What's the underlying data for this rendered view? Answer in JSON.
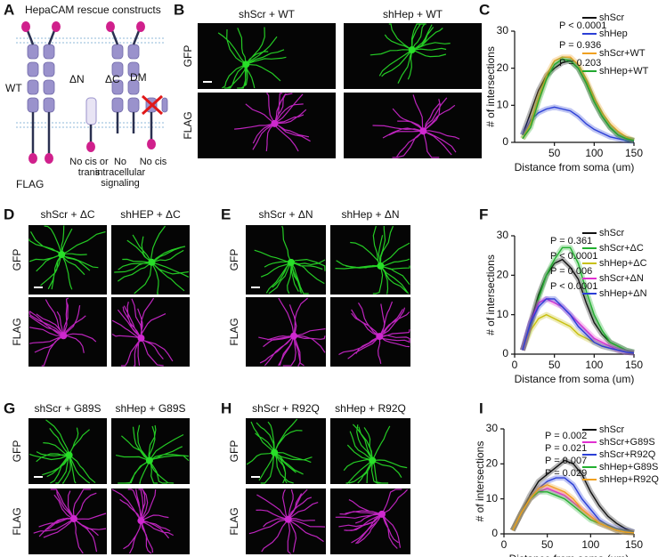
{
  "panel_letters": [
    "A",
    "B",
    "C",
    "D",
    "E",
    "F",
    "G",
    "H",
    "I"
  ],
  "panel_a": {
    "title": "HepaCAM rescue constructs",
    "tag": "FLAG",
    "constructs": [
      {
        "name": "WT"
      },
      {
        "name": "ΔN",
        "note": [
          "No cis or",
          "trans"
        ]
      },
      {
        "name": "ΔC",
        "note": [
          "No",
          "intracellular",
          "signaling"
        ]
      },
      {
        "name": "DM",
        "note": [
          "No cis"
        ]
      }
    ]
  },
  "image_panels": [
    {
      "columns": [
        "shScr + WT",
        "shHep + WT"
      ],
      "rows": [
        "GFP",
        "FLAG"
      ]
    },
    {
      "columns": [
        "shScr + ΔC",
        "shHEP + ΔC"
      ],
      "rows": [
        "GFP",
        "FLAG"
      ]
    },
    {
      "columns": [
        "shScr + ΔN",
        "shHep + ΔN"
      ],
      "rows": [
        "GFP",
        "FLAG"
      ]
    },
    {
      "columns": [
        "shScr + G89S",
        "shHep + G89S"
      ],
      "rows": [
        "GFP",
        "FLAG"
      ]
    },
    {
      "columns": [
        "shScr + R92Q",
        "shHep + R92Q"
      ],
      "rows": [
        "GFP",
        "FLAG"
      ]
    }
  ],
  "chart_data": [
    {
      "type": "line",
      "x_label": "Distance from soma (um)",
      "y_label": "# of intersections",
      "x": [
        10,
        20,
        30,
        40,
        50,
        60,
        70,
        80,
        90,
        100,
        110,
        120,
        130,
        140,
        150
      ],
      "xlim": [
        0,
        150
      ],
      "xticks": [
        50,
        100,
        150
      ],
      "ylim": [
        0,
        30
      ],
      "yticks": [
        0,
        10,
        20,
        30
      ],
      "annotations": [
        "P < 0.0001",
        "P = 0.936",
        "P = 0.203"
      ],
      "series": [
        {
          "name": "shScr",
          "color": "#111111",
          "values": [
            2,
            8,
            14,
            18,
            20,
            21.5,
            22,
            20,
            16,
            11,
            7,
            4,
            2,
            1,
            0.5
          ]
        },
        {
          "name": "shHep",
          "color": "#2b3fd6",
          "values": [
            2,
            6,
            8,
            9,
            9.5,
            9,
            8.5,
            7,
            5,
            3.5,
            2.5,
            1.5,
            1,
            0.5,
            0.3
          ]
        },
        {
          "name": "shScr+WT",
          "color": "#f0a020",
          "values": [
            1,
            5,
            12,
            18,
            22,
            23,
            23,
            21,
            17,
            12,
            8,
            5,
            3,
            1.5,
            0.5
          ]
        },
        {
          "name": "shHep+WT",
          "color": "#22a830",
          "values": [
            1,
            4,
            11,
            17,
            21,
            22.5,
            22,
            20,
            16,
            11,
            7,
            4,
            2,
            1,
            0.5
          ]
        }
      ]
    },
    {
      "type": "line",
      "x_label": "Distance from soma (um)",
      "y_label": "# of intersections",
      "x": [
        10,
        20,
        30,
        40,
        50,
        60,
        70,
        80,
        90,
        100,
        110,
        120,
        130,
        140,
        150
      ],
      "xlim": [
        0,
        150
      ],
      "xticks": [
        0,
        50,
        100,
        150
      ],
      "ylim": [
        0,
        30
      ],
      "yticks": [
        0,
        10,
        20,
        30
      ],
      "annotations": [
        "P = 0.361",
        "P < 0.0001",
        "P = 0.006",
        "P < 0.0001"
      ],
      "series": [
        {
          "name": "shScr",
          "color": "#111111",
          "values": [
            1,
            8,
            15,
            20,
            23,
            24,
            22,
            19,
            13,
            8,
            5,
            3,
            2,
            1,
            0.5
          ]
        },
        {
          "name": "shScr+ΔC",
          "color": "#22b030",
          "values": [
            1,
            7,
            14,
            20,
            24,
            27,
            27,
            23,
            16,
            10,
            6,
            3,
            2,
            1,
            0.5
          ]
        },
        {
          "name": "shHep+ΔC",
          "color": "#c8c010",
          "values": [
            1,
            6,
            9,
            10,
            9,
            8,
            7,
            5,
            4,
            3,
            2,
            1.5,
            1,
            0.5,
            0.3
          ]
        },
        {
          "name": "shScr+ΔN",
          "color": "#e030d0",
          "values": [
            1,
            8,
            13,
            14,
            13,
            12,
            10,
            8,
            6,
            4,
            3,
            2,
            1,
            0.5,
            0.3
          ]
        },
        {
          "name": "shHep+ΔN",
          "color": "#2b3fd6",
          "values": [
            1,
            8,
            12,
            14,
            14,
            12,
            10,
            7,
            5,
            3,
            2,
            1.5,
            1,
            0.5,
            0.3
          ]
        }
      ]
    },
    {
      "type": "line",
      "x_label": "Distance from soma (um)",
      "y_label": "# of intersections",
      "x": [
        10,
        20,
        30,
        40,
        50,
        60,
        70,
        80,
        90,
        100,
        110,
        120,
        130,
        140,
        150
      ],
      "xlim": [
        0,
        150
      ],
      "xticks": [
        0,
        50,
        100,
        150
      ],
      "ylim": [
        0,
        30
      ],
      "yticks": [
        0,
        10,
        20,
        30
      ],
      "annotations": [
        "P = 0.002",
        "P = 0.021",
        "P = 0.007",
        "P = 0.029"
      ],
      "series": [
        {
          "name": "shScr",
          "color": "#111111",
          "values": [
            1,
            6,
            11,
            15,
            17,
            19,
            21,
            20,
            17,
            12,
            8,
            5,
            3,
            1.5,
            0.5
          ]
        },
        {
          "name": "shScr+G89S",
          "color": "#e030d0",
          "values": [
            1,
            6,
            10,
            12,
            13,
            12,
            11,
            9,
            7,
            5,
            3,
            2,
            1,
            0.5,
            0.3
          ]
        },
        {
          "name": "shScr+R92Q",
          "color": "#2b3fd6",
          "values": [
            1,
            6,
            10,
            13,
            15,
            16,
            16,
            14,
            10,
            7,
            4,
            2.5,
            1.5,
            1,
            0.5
          ]
        },
        {
          "name": "shHep+G89S",
          "color": "#22b030",
          "values": [
            1,
            6,
            10,
            12,
            12,
            11,
            10,
            8,
            6,
            4,
            3,
            2,
            1,
            0.5,
            0.3
          ]
        },
        {
          "name": "shHep+R92Q",
          "color": "#f0a020",
          "values": [
            1,
            6,
            10,
            13,
            14,
            13,
            12,
            10,
            7,
            5,
            3,
            2,
            1,
            0.5,
            0.3
          ]
        }
      ]
    }
  ]
}
